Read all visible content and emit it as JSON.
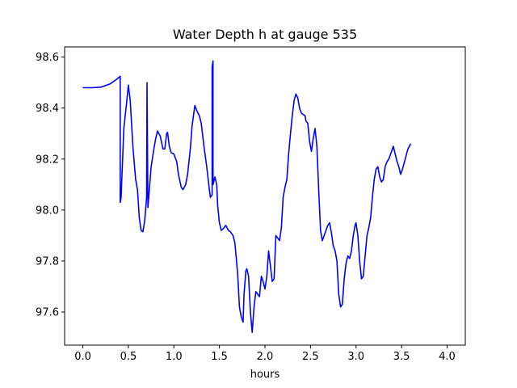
{
  "chart_data": {
    "type": "line",
    "title": "Water Depth h at gauge 535",
    "xlabel": "hours",
    "ylabel": "",
    "xlim": [
      -0.2,
      4.2
    ],
    "ylim": [
      97.47,
      98.64
    ],
    "xticks": [
      0.0,
      0.5,
      1.0,
      1.5,
      2.0,
      2.5,
      3.0,
      3.5,
      4.0
    ],
    "xtick_labels": [
      "0.0",
      "0.5",
      "1.0",
      "1.5",
      "2.0",
      "2.5",
      "3.0",
      "3.5",
      "4.0"
    ],
    "yticks": [
      97.6,
      97.8,
      98.0,
      98.2,
      98.4,
      98.6
    ],
    "ytick_labels": [
      "97.6",
      "97.8",
      "98.0",
      "98.2",
      "98.4",
      "98.6"
    ],
    "grid": false,
    "series": [
      {
        "color": "#0000ff",
        "points": [
          [
            0.0,
            98.48
          ],
          [
            0.1,
            98.48
          ],
          [
            0.2,
            98.482
          ],
          [
            0.3,
            98.495
          ],
          [
            0.38,
            98.515
          ],
          [
            0.41,
            98.525
          ],
          [
            0.41,
            98.03
          ],
          [
            0.42,
            98.05
          ],
          [
            0.45,
            98.32
          ],
          [
            0.48,
            98.42
          ],
          [
            0.5,
            98.49
          ],
          [
            0.52,
            98.43
          ],
          [
            0.55,
            98.25
          ],
          [
            0.58,
            98.12
          ],
          [
            0.6,
            98.08
          ],
          [
            0.62,
            97.97
          ],
          [
            0.64,
            97.92
          ],
          [
            0.66,
            97.915
          ],
          [
            0.68,
            97.96
          ],
          [
            0.7,
            98.05
          ],
          [
            0.705,
            98.5
          ],
          [
            0.715,
            98.01
          ],
          [
            0.75,
            98.17
          ],
          [
            0.78,
            98.24
          ],
          [
            0.8,
            98.28
          ],
          [
            0.82,
            98.31
          ],
          [
            0.85,
            98.29
          ],
          [
            0.88,
            98.24
          ],
          [
            0.9,
            98.24
          ],
          [
            0.92,
            98.3
          ],
          [
            0.93,
            98.305
          ],
          [
            0.95,
            98.25
          ],
          [
            0.97,
            98.225
          ],
          [
            1.0,
            98.22
          ],
          [
            1.03,
            98.19
          ],
          [
            1.05,
            98.14
          ],
          [
            1.08,
            98.09
          ],
          [
            1.1,
            98.08
          ],
          [
            1.13,
            98.1
          ],
          [
            1.15,
            98.14
          ],
          [
            1.18,
            98.24
          ],
          [
            1.2,
            98.33
          ],
          [
            1.23,
            98.41
          ],
          [
            1.25,
            98.39
          ],
          [
            1.28,
            98.37
          ],
          [
            1.3,
            98.34
          ],
          [
            1.33,
            98.25
          ],
          [
            1.36,
            98.17
          ],
          [
            1.39,
            98.08
          ],
          [
            1.4,
            98.05
          ],
          [
            1.42,
            98.06
          ],
          [
            1.42,
            98.56
          ],
          [
            1.43,
            98.585
          ],
          [
            1.43,
            98.1
          ],
          [
            1.45,
            98.13
          ],
          [
            1.47,
            98.1
          ],
          [
            1.48,
            98.02
          ],
          [
            1.5,
            97.95
          ],
          [
            1.52,
            97.92
          ],
          [
            1.55,
            97.93
          ],
          [
            1.57,
            97.94
          ],
          [
            1.6,
            97.92
          ],
          [
            1.62,
            97.915
          ],
          [
            1.65,
            97.9
          ],
          [
            1.67,
            97.87
          ],
          [
            1.7,
            97.75
          ],
          [
            1.72,
            97.62
          ],
          [
            1.74,
            97.58
          ],
          [
            1.75,
            97.57
          ],
          [
            1.76,
            97.56
          ],
          [
            1.77,
            97.67
          ],
          [
            1.79,
            97.76
          ],
          [
            1.8,
            97.77
          ],
          [
            1.82,
            97.74
          ],
          [
            1.84,
            97.6
          ],
          [
            1.86,
            97.52
          ],
          [
            1.88,
            97.62
          ],
          [
            1.9,
            97.68
          ],
          [
            1.92,
            97.67
          ],
          [
            1.94,
            97.66
          ],
          [
            1.96,
            97.74
          ],
          [
            1.98,
            97.72
          ],
          [
            2.0,
            97.69
          ],
          [
            2.02,
            97.74
          ],
          [
            2.04,
            97.84
          ],
          [
            2.06,
            97.78
          ],
          [
            2.08,
            97.72
          ],
          [
            2.1,
            97.73
          ],
          [
            2.12,
            97.9
          ],
          [
            2.14,
            97.89
          ],
          [
            2.16,
            97.88
          ],
          [
            2.18,
            97.93
          ],
          [
            2.2,
            98.05
          ],
          [
            2.22,
            98.09
          ],
          [
            2.24,
            98.12
          ],
          [
            2.26,
            98.22
          ],
          [
            2.28,
            98.3
          ],
          [
            2.3,
            98.37
          ],
          [
            2.32,
            98.43
          ],
          [
            2.34,
            98.455
          ],
          [
            2.36,
            98.44
          ],
          [
            2.38,
            98.4
          ],
          [
            2.4,
            98.38
          ],
          [
            2.42,
            98.375
          ],
          [
            2.44,
            98.37
          ],
          [
            2.45,
            98.35
          ],
          [
            2.47,
            98.34
          ],
          [
            2.49,
            98.27
          ],
          [
            2.51,
            98.23
          ],
          [
            2.53,
            98.28
          ],
          [
            2.55,
            98.32
          ],
          [
            2.57,
            98.25
          ],
          [
            2.59,
            98.08
          ],
          [
            2.61,
            97.92
          ],
          [
            2.63,
            97.88
          ],
          [
            2.65,
            97.9
          ],
          [
            2.67,
            97.92
          ],
          [
            2.69,
            97.94
          ],
          [
            2.71,
            97.95
          ],
          [
            2.73,
            97.91
          ],
          [
            2.75,
            97.86
          ],
          [
            2.77,
            97.84
          ],
          [
            2.79,
            97.8
          ],
          [
            2.81,
            97.67
          ],
          [
            2.83,
            97.62
          ],
          [
            2.85,
            97.63
          ],
          [
            2.87,
            97.73
          ],
          [
            2.89,
            97.79
          ],
          [
            2.91,
            97.82
          ],
          [
            2.93,
            97.81
          ],
          [
            2.95,
            97.84
          ],
          [
            2.97,
            97.9
          ],
          [
            2.99,
            97.94
          ],
          [
            3.0,
            97.95
          ],
          [
            3.02,
            97.9
          ],
          [
            3.04,
            97.8
          ],
          [
            3.06,
            97.73
          ],
          [
            3.08,
            97.74
          ],
          [
            3.1,
            97.82
          ],
          [
            3.12,
            97.9
          ],
          [
            3.14,
            97.93
          ],
          [
            3.16,
            97.97
          ],
          [
            3.18,
            98.05
          ],
          [
            3.2,
            98.12
          ],
          [
            3.22,
            98.16
          ],
          [
            3.24,
            98.17
          ],
          [
            3.26,
            98.13
          ],
          [
            3.28,
            98.11
          ],
          [
            3.3,
            98.12
          ],
          [
            3.32,
            98.17
          ],
          [
            3.34,
            98.19
          ],
          [
            3.36,
            98.2
          ],
          [
            3.38,
            98.22
          ],
          [
            3.4,
            98.24
          ],
          [
            3.41,
            98.25
          ],
          [
            3.43,
            98.22
          ],
          [
            3.45,
            98.19
          ],
          [
            3.47,
            98.17
          ],
          [
            3.49,
            98.14
          ],
          [
            3.51,
            98.16
          ],
          [
            3.54,
            98.2
          ],
          [
            3.57,
            98.24
          ],
          [
            3.6,
            98.26
          ]
        ]
      }
    ]
  }
}
